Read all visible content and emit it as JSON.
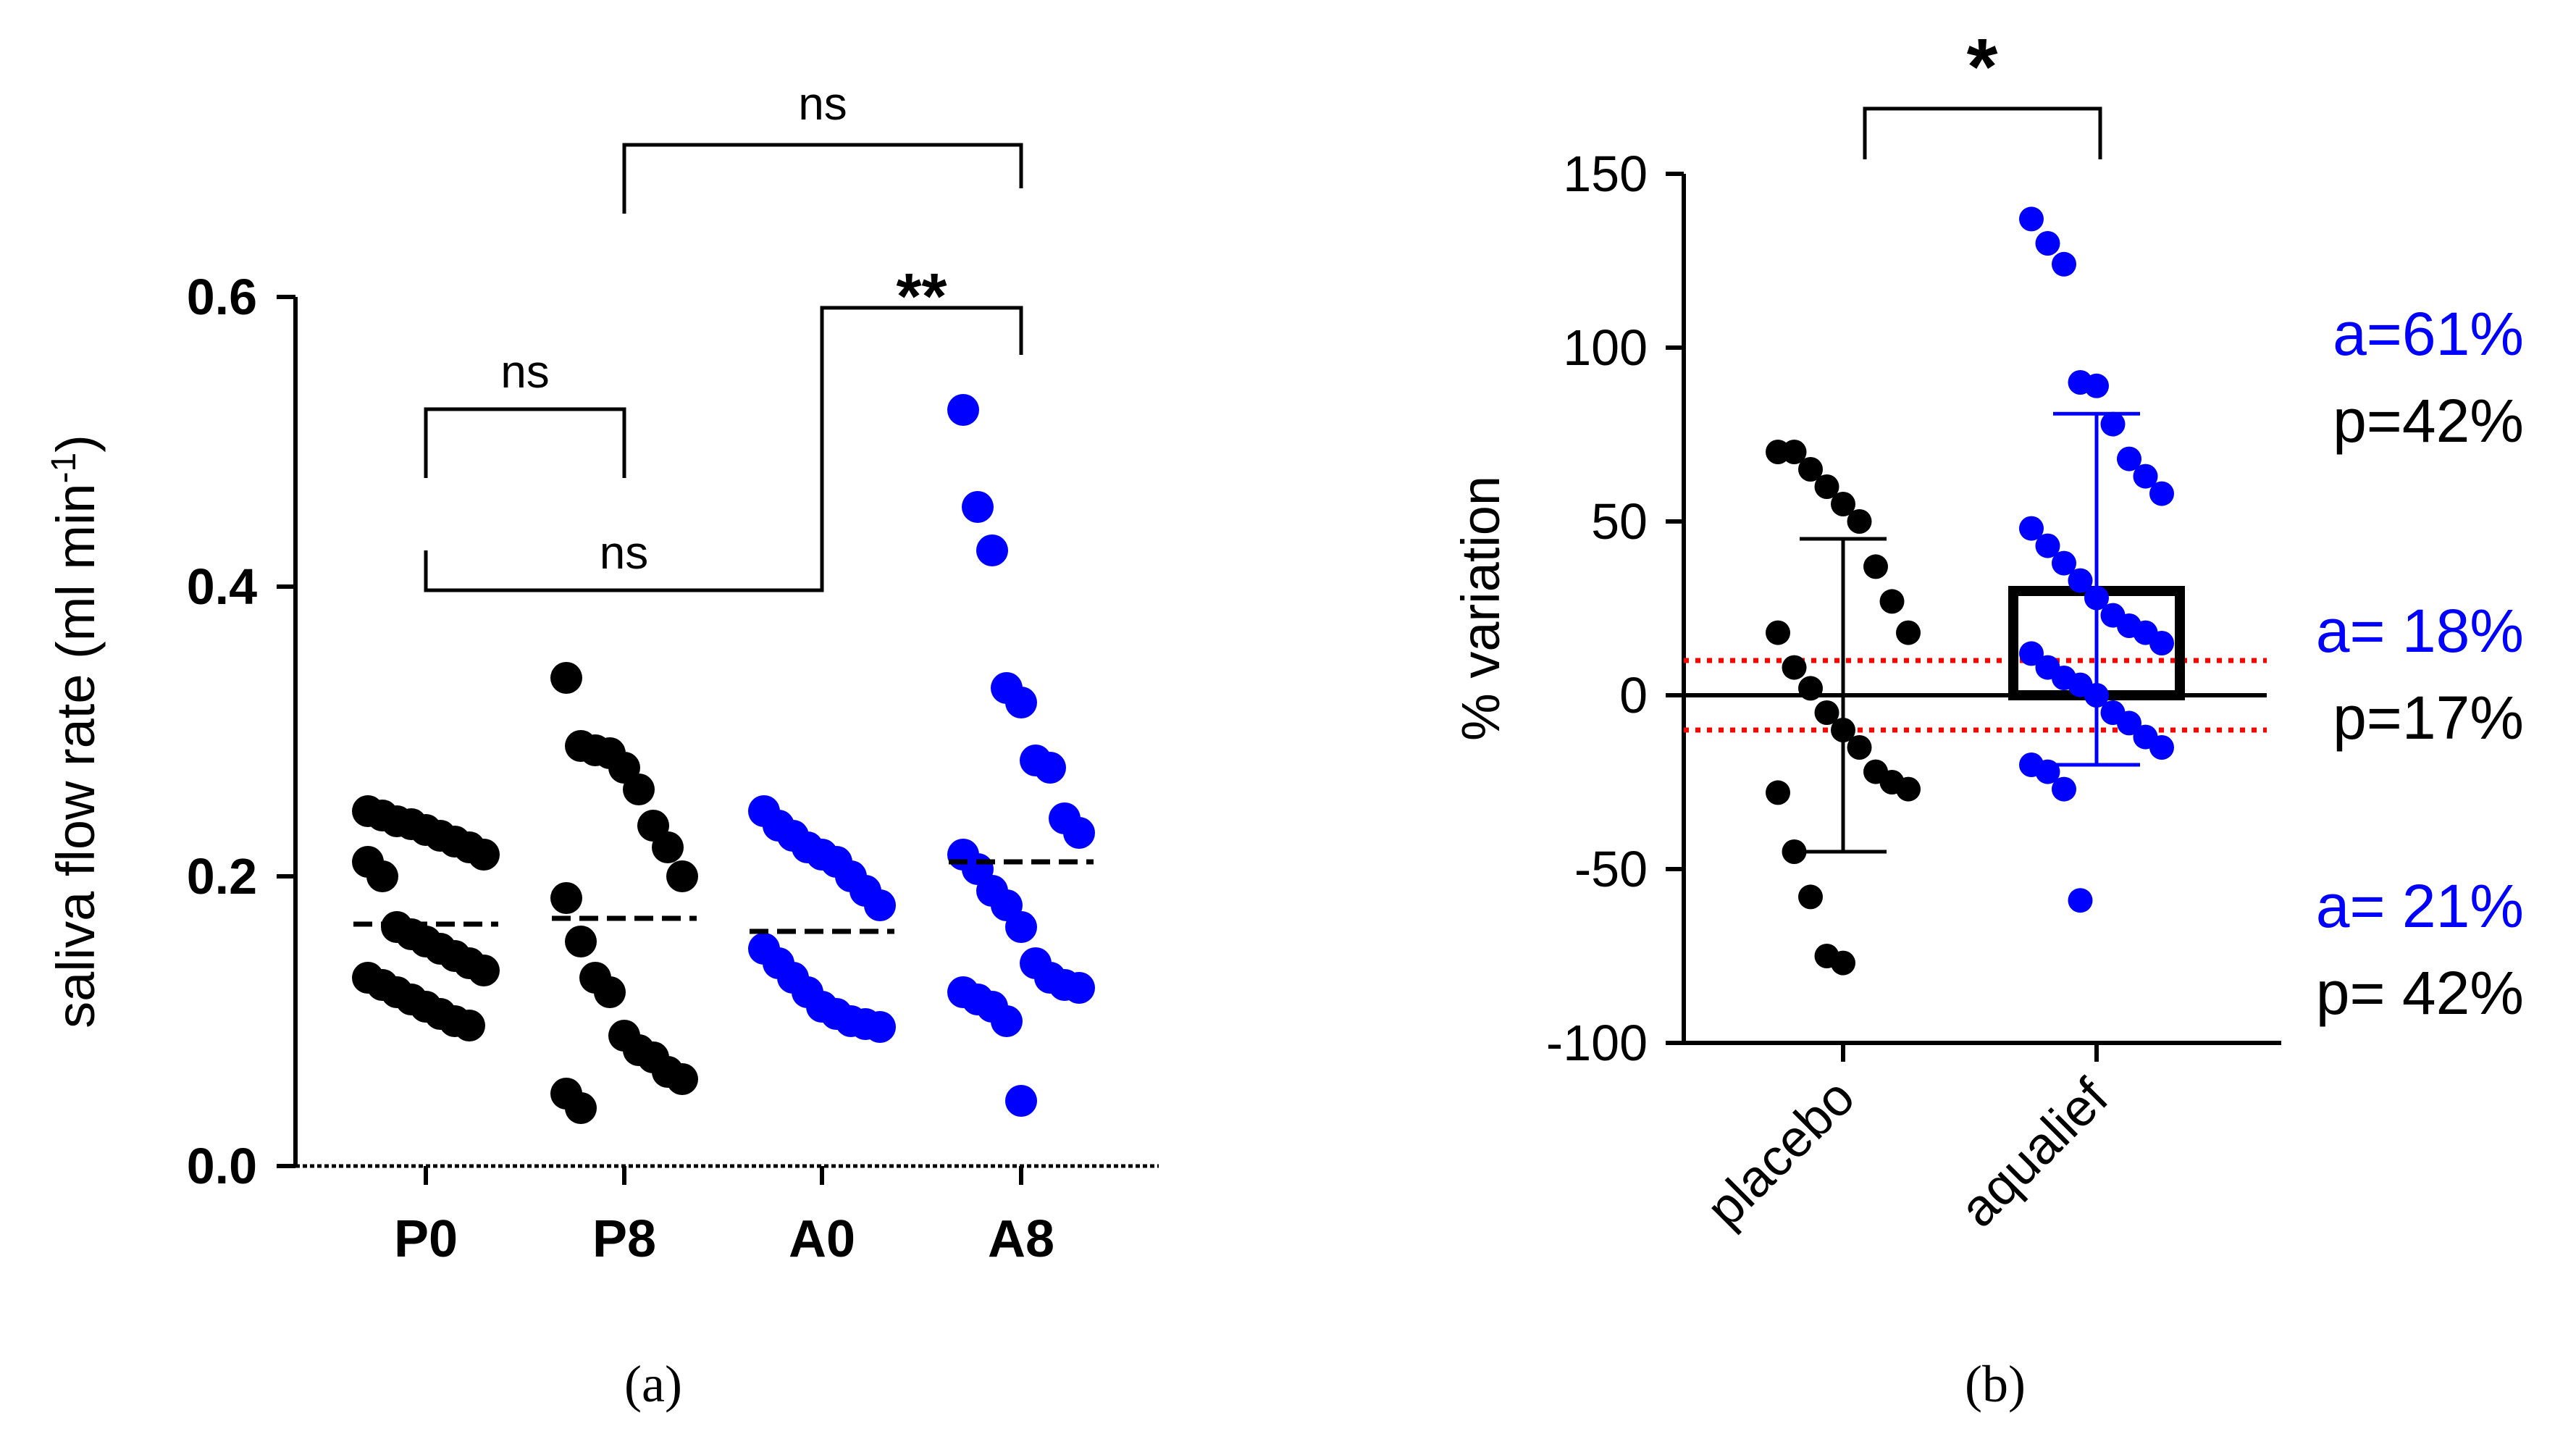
{
  "chart_data": [
    {
      "panel": "a",
      "caption": "(a)",
      "type": "scatter",
      "ylabel": "saliva flow rate (ml min",
      "ylabel_sup": "-1",
      "ylabel_close": ")",
      "ylim": [
        0,
        0.6
      ],
      "yticks": [
        "0.0",
        "0.2",
        "0.4",
        "0.6"
      ],
      "categories": [
        "P0",
        "P8",
        "A0",
        "A8"
      ],
      "colors": [
        "#000000",
        "#000000",
        "#0000ff",
        "#0000ff"
      ],
      "means": [
        0.167,
        0.171,
        0.162,
        0.21
      ],
      "points": [
        [
          0.245,
          0.242,
          0.238,
          0.236,
          0.232,
          0.228,
          0.224,
          0.22,
          0.215,
          0.21,
          0.2,
          0.165,
          0.16,
          0.155,
          0.15,
          0.145,
          0.14,
          0.135,
          0.13,
          0.125,
          0.12,
          0.115,
          0.11,
          0.105,
          0.1,
          0.097
        ],
        [
          0.337,
          0.29,
          0.287,
          0.285,
          0.275,
          0.26,
          0.235,
          0.22,
          0.2,
          0.185,
          0.155,
          0.13,
          0.12,
          0.09,
          0.08,
          0.075,
          0.065,
          0.06,
          0.05,
          0.04
        ],
        [
          0.245,
          0.235,
          0.228,
          0.22,
          0.215,
          0.21,
          0.2,
          0.19,
          0.18,
          0.15,
          0.14,
          0.13,
          0.12,
          0.11,
          0.105,
          0.1,
          0.098,
          0.096
        ],
        [
          0.522,
          0.455,
          0.425,
          0.33,
          0.32,
          0.28,
          0.275,
          0.24,
          0.23,
          0.215,
          0.205,
          0.19,
          0.18,
          0.165,
          0.14,
          0.13,
          0.125,
          0.123,
          0.12,
          0.115,
          0.11,
          0.1,
          0.045
        ]
      ],
      "annotations": [
        {
          "label": "ns",
          "from": "P0",
          "to": "P8"
        },
        {
          "label": "ns",
          "from": "P0",
          "to": "A0"
        },
        {
          "label": "**",
          "from": "A0",
          "to": "A8"
        },
        {
          "label": "ns",
          "from": "P8",
          "to": "A8"
        }
      ]
    },
    {
      "panel": "b",
      "caption": "(b)",
      "type": "scatter",
      "ylabel": "% variation",
      "ylim": [
        -100,
        150
      ],
      "yticks": [
        "-100",
        "-50",
        "0",
        "50",
        "100",
        "150"
      ],
      "categories": [
        "placebo",
        "aqualief"
      ],
      "colors": [
        "#000000",
        "#0000ff"
      ],
      "means": [
        0,
        30
      ],
      "sd": [
        [
          -45,
          45
        ],
        [
          -20,
          81
        ]
      ],
      "bar_value": 30,
      "reference_lines": [
        10,
        -10
      ],
      "points": [
        [
          70,
          70,
          65,
          60,
          55,
          50,
          37,
          27,
          18,
          18,
          8,
          2,
          -5,
          -10,
          -15,
          -22,
          -25,
          -27,
          -28,
          -45,
          -58,
          -75,
          -77
        ],
        [
          137,
          130,
          124,
          90,
          89,
          78,
          68,
          63,
          58,
          48,
          43,
          38,
          33,
          28,
          23,
          20,
          18,
          15,
          12,
          8,
          5,
          3,
          0,
          -5,
          -8,
          -12,
          -15,
          -20,
          -22,
          -27,
          -59
        ]
      ],
      "annotations": [
        {
          "label": "*",
          "from": "placebo",
          "to": "aqualief"
        }
      ],
      "side_labels": [
        {
          "a": "a=61%",
          "p": "p=42%"
        },
        {
          "a": "a= 18%",
          "p": "p=17%"
        },
        {
          "a": "a= 21%",
          "p": "p= 42%"
        }
      ]
    }
  ]
}
